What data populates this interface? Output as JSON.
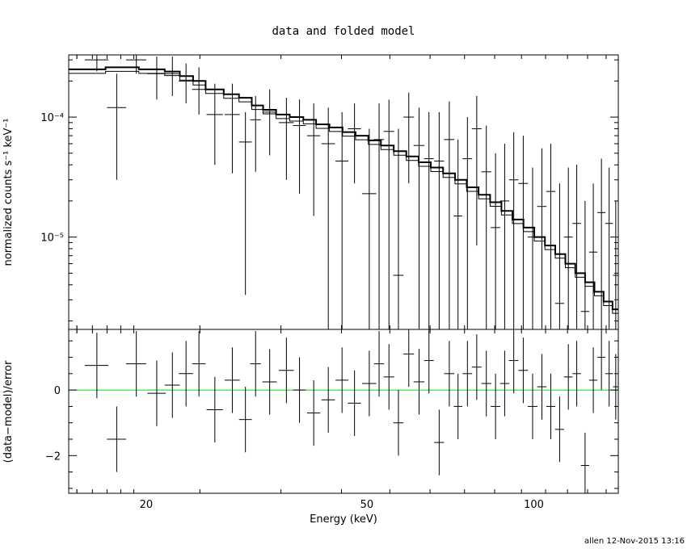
{
  "title": "data and folded model",
  "footer": "allen 12-Nov-2015 13:16",
  "colors": {
    "data": "#000000",
    "model": "#000000",
    "zero_line": "#00dd00",
    "background": "#ffffff"
  },
  "chart_data": [
    {
      "type": "scatter",
      "name": "spectrum",
      "xlabel": "",
      "ylabel": "normalized counts s⁻¹ keV⁻¹",
      "x_scale": "log",
      "y_scale": "log",
      "xlim": [
        14.5,
        142
      ],
      "ylim": [
        1.7e-06,
        0.00033
      ],
      "y_tick_labels": [
        "10⁻⁴",
        "10⁻⁵"
      ],
      "y_tick_values": [
        0.0001,
        1e-05
      ],
      "data": {
        "x": [
          16.3,
          17.7,
          19.2,
          20.9,
          22.3,
          23.6,
          24.9,
          26.6,
          28.6,
          30.2,
          31.5,
          33.4,
          35.8,
          37.8,
          40.1,
          42.6,
          45.1,
          47.5,
          50.5,
          52.6,
          54.8,
          57.0,
          59.5,
          62.1,
          64.7,
          67.5,
          70.4,
          73.0,
          75.9,
          78.9,
          82.1,
          85.3,
          88.6,
          92.0,
          95.7,
          99.5,
          103.4,
          107.3,
          111.3,
          115.4,
          119.5,
          123.7,
          128.0,
          132.4,
          136.7,
          140.5
        ],
        "xerr": [
          0.8,
          0.7,
          0.8,
          0.8,
          0.7,
          0.7,
          0.7,
          0.9,
          0.9,
          0.8,
          0.7,
          1.0,
          1.1,
          1.0,
          1.1,
          1.2,
          1.2,
          1.3,
          1.5,
          1.1,
          1.2,
          1.2,
          1.3,
          1.4,
          1.3,
          1.4,
          1.5,
          1.3,
          1.5,
          1.6,
          1.7,
          1.7,
          1.7,
          1.8,
          1.9,
          2.0,
          2.0,
          2.0,
          2.1,
          2.1,
          2.1,
          2.1,
          2.2,
          2.2,
          2.2,
          1.6
        ],
        "y": [
          0.0003,
          0.00012,
          0.0003,
          0.00023,
          0.00023,
          0.0002,
          0.00017,
          0.000105,
          0.000105,
          6.2e-05,
          9.5e-05,
          0.00011,
          9e-05,
          8.5e-05,
          7e-05,
          6e-05,
          4.3e-05,
          8e-05,
          2.3e-05,
          6.5e-05,
          7.6e-05,
          4.8e-06,
          0.0001,
          5.8e-05,
          4.5e-05,
          4.3e-05,
          6.5e-05,
          1.5e-05,
          4.5e-05,
          8e-05,
          3.5e-05,
          1.2e-05,
          2e-05,
          3e-05,
          2.8e-05,
          1e-05,
          1.8e-05,
          2.4e-05,
          2.8e-06,
          1e-05,
          1.3e-05,
          2.4e-06,
          7.5e-06,
          1.6e-05,
          1.3e-05,
          4.8e-06
        ],
        "ylo": [
          0.00024,
          3e-05,
          0.00023,
          0.00014,
          0.00015,
          0.00013,
          0.000105,
          4e-05,
          3.4e-05,
          3.3e-06,
          3.5e-05,
          4.8e-05,
          3e-05,
          2.3e-05,
          1.5e-05,
          1.7e-06,
          1.7e-06,
          2.8e-05,
          1.7e-06,
          1.7e-06,
          1.7e-06,
          1.7e-06,
          2.8e-05,
          1.7e-06,
          1.7e-06,
          1.7e-06,
          1.7e-06,
          1.7e-06,
          1.7e-06,
          8.5e-06,
          1.7e-06,
          1.7e-06,
          1.7e-06,
          1.7e-06,
          1.7e-06,
          1.7e-06,
          1.7e-06,
          1.7e-06,
          1.7e-06,
          1.7e-06,
          1.7e-06,
          1.7e-06,
          1.7e-06,
          1.7e-06,
          1.7e-06,
          1.7e-06
        ],
        "yhi": [
          0.00033,
          0.00023,
          0.00033,
          0.00032,
          0.00032,
          0.00028,
          0.00026,
          0.00019,
          0.00019,
          0.00011,
          0.00015,
          0.00017,
          0.000145,
          0.00014,
          0.00013,
          0.00012,
          0.00011,
          0.00013,
          8e-05,
          0.00013,
          0.00014,
          8e-05,
          0.00016,
          0.00012,
          0.00011,
          0.00011,
          0.000135,
          6.5e-05,
          0.0001,
          0.00015,
          8.5e-05,
          5e-05,
          6e-05,
          7.5e-05,
          7e-05,
          3.8e-05,
          5.5e-05,
          6e-05,
          2.8e-05,
          3.8e-05,
          4e-05,
          2e-05,
          2.8e-05,
          4.5e-05,
          3.8e-05,
          2e-05
        ]
      },
      "model": {
        "x": [
          14.5,
          16.9,
          19.4,
          21.6,
          23.0,
          24.3,
          25.6,
          27.6,
          29.4,
          31.0,
          32.5,
          34.3,
          36.3,
          38.4,
          40.5,
          42.8,
          45.2,
          47.7,
          50.3,
          53.0,
          55.9,
          58.9,
          62.0,
          65.2,
          68.6,
          72.1,
          75.7,
          79.5,
          83.4,
          87.4,
          91.5,
          95.8,
          100.2,
          104.7,
          109.3,
          114.0,
          118.8,
          123.7,
          128.6,
          133.6,
          138.6,
          142
        ],
        "y": [
          0.00025,
          0.00026,
          0.00025,
          0.00024,
          0.00022,
          0.0002,
          0.00017,
          0.000155,
          0.000145,
          0.000125,
          0.000115,
          0.000105,
          0.0001,
          9.5e-05,
          8.7e-05,
          8.2e-05,
          7.5e-05,
          7e-05,
          6.4e-05,
          5.8e-05,
          5.2e-05,
          4.7e-05,
          4.2e-05,
          3.8e-05,
          3.4e-05,
          3e-05,
          2.6e-05,
          2.25e-05,
          1.95e-05,
          1.65e-05,
          1.4e-05,
          1.2e-05,
          1e-05,
          8.5e-06,
          7.2e-06,
          6e-06,
          5e-06,
          4.2e-06,
          3.5e-06,
          2.9e-06,
          2.5e-06,
          2.5e-06
        ]
      }
    },
    {
      "type": "scatter",
      "name": "residuals",
      "xlabel": "Energy (keV)",
      "ylabel": "(data−model)/error",
      "x_scale": "log",
      "y_scale": "linear",
      "xlim": [
        14.5,
        142
      ],
      "ylim": [
        -3.15,
        1.85
      ],
      "x_tick_labels": [
        "20",
        "50",
        "100"
      ],
      "x_tick_values": [
        20,
        50,
        100
      ],
      "y_tick_labels": [
        "0",
        "−2"
      ],
      "y_tick_values": [
        0,
        -2
      ],
      "zero_line": 0,
      "data": {
        "x": [
          16.3,
          17.7,
          19.2,
          20.9,
          22.3,
          23.6,
          24.9,
          26.6,
          28.6,
          30.2,
          31.5,
          33.4,
          35.8,
          37.8,
          40.1,
          42.6,
          45.1,
          47.5,
          50.5,
          52.6,
          54.8,
          57.0,
          59.5,
          62.1,
          64.7,
          67.5,
          70.4,
          73.0,
          75.9,
          78.9,
          82.1,
          85.3,
          88.6,
          92.0,
          95.7,
          99.5,
          103.4,
          107.3,
          111.3,
          115.4,
          119.5,
          123.7,
          128.0,
          132.4,
          136.7,
          140.5
        ],
        "y": [
          0.75,
          -1.5,
          0.8,
          -0.1,
          0.15,
          0.5,
          0.8,
          -0.6,
          0.3,
          -0.9,
          0.8,
          0.25,
          0.6,
          0.0,
          -0.7,
          -0.3,
          0.3,
          -0.4,
          0.2,
          0.8,
          0.4,
          -1.0,
          1.1,
          0.25,
          0.9,
          -1.6,
          0.5,
          -0.5,
          0.5,
          0.7,
          0.2,
          -0.5,
          0.2,
          0.9,
          0.6,
          -0.5,
          0.1,
          -0.5,
          -1.2,
          0.4,
          0.5,
          -2.3,
          0.3,
          1.0,
          0.5,
          0.1
        ],
        "err": [
          1.0,
          1.0,
          1.0,
          1.0,
          1.0,
          1.0,
          1.0,
          1.0,
          1.0,
          1.0,
          1.0,
          1.0,
          1.0,
          1.0,
          1.0,
          1.0,
          1.0,
          1.0,
          1.0,
          1.0,
          1.0,
          1.0,
          1.0,
          1.0,
          1.0,
          1.0,
          1.0,
          1.0,
          1.0,
          1.0,
          1.0,
          1.0,
          1.0,
          1.0,
          1.0,
          1.0,
          1.0,
          1.0,
          1.0,
          1.0,
          1.0,
          1.0,
          1.0,
          1.0,
          1.0,
          1.0
        ]
      }
    }
  ]
}
